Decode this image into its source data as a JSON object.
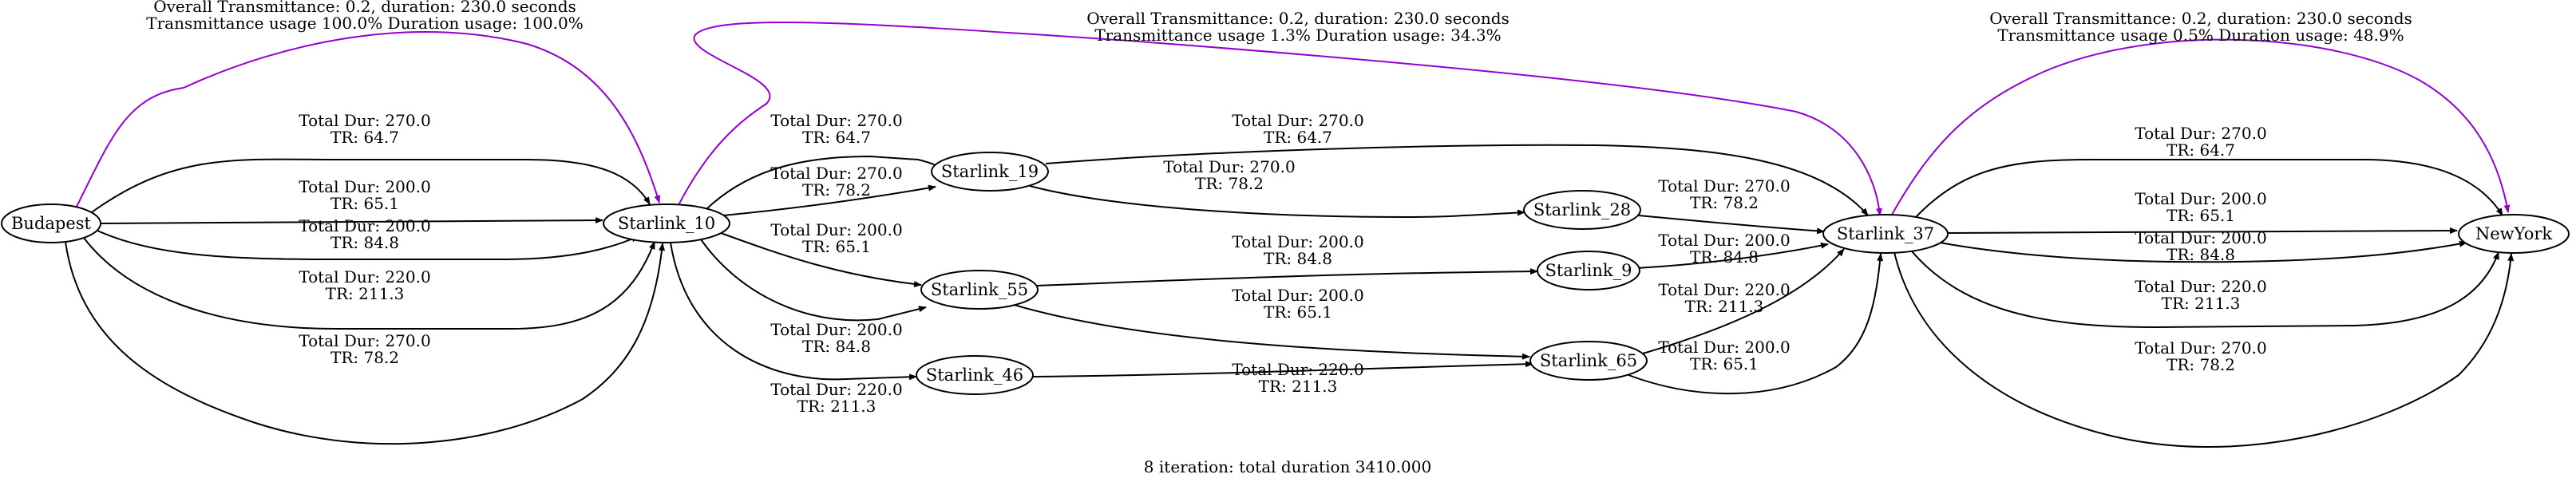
{
  "caption": "8 iteration: total duration 3410.000",
  "colors": {
    "edge": "#000000",
    "highlight": "#9400d3"
  },
  "nodes": [
    {
      "id": "budapest",
      "label": "Budapest"
    },
    {
      "id": "starlink_10",
      "label": "Starlink_10"
    },
    {
      "id": "starlink_19",
      "label": "Starlink_19"
    },
    {
      "id": "starlink_55",
      "label": "Starlink_55"
    },
    {
      "id": "starlink_46",
      "label": "Starlink_46"
    },
    {
      "id": "starlink_28",
      "label": "Starlink_28"
    },
    {
      "id": "starlink_9",
      "label": "Starlink_9"
    },
    {
      "id": "starlink_65",
      "label": "Starlink_65"
    },
    {
      "id": "starlink_37",
      "label": "Starlink_37"
    },
    {
      "id": "newyork",
      "label": "NewYork"
    }
  ],
  "edges": [
    {
      "id": "b10-270-64",
      "from": "budapest",
      "to": "starlink_10",
      "label": [
        "Total Dur: 270.0",
        "TR: 64.7"
      ]
    },
    {
      "id": "b10-200-65",
      "from": "budapest",
      "to": "starlink_10",
      "label": [
        "Total Dur: 200.0",
        "TR: 65.1"
      ]
    },
    {
      "id": "b10-200-84",
      "from": "budapest",
      "to": "starlink_10",
      "label": [
        "Total Dur: 200.0",
        "TR: 84.8"
      ]
    },
    {
      "id": "b10-220-211",
      "from": "budapest",
      "to": "starlink_10",
      "label": [
        "Total Dur: 220.0",
        "TR: 211.3"
      ]
    },
    {
      "id": "b10-270-78",
      "from": "budapest",
      "to": "starlink_10",
      "label": [
        "Total Dur: 270.0",
        "TR: 78.2"
      ]
    },
    {
      "id": "b10-overall",
      "from": "budapest",
      "to": "starlink_10",
      "highlight": true,
      "label": [
        "Overall Transmittance: 0.2, duration: 230.0 seconds",
        "Transmittance usage 100.0% Duration usage: 100.0%"
      ]
    },
    {
      "id": "s10-19-64",
      "from": "starlink_10",
      "to": "starlink_19",
      "label": [
        "Total Dur: 270.0",
        "TR: 64.7"
      ]
    },
    {
      "id": "s10-19-78",
      "from": "starlink_10",
      "to": "starlink_19",
      "label": [
        "Total Dur: 270.0",
        "TR: 78.2"
      ]
    },
    {
      "id": "s10-55-65",
      "from": "starlink_10",
      "to": "starlink_55",
      "label": [
        "Total Dur: 200.0",
        "TR: 65.1"
      ]
    },
    {
      "id": "s10-55-84",
      "from": "starlink_10",
      "to": "starlink_55",
      "label": [
        "Total Dur: 200.0",
        "TR: 84.8"
      ]
    },
    {
      "id": "s10-46-211",
      "from": "starlink_10",
      "to": "starlink_46",
      "label": [
        "Total Dur: 220.0",
        "TR: 211.3"
      ]
    },
    {
      "id": "s10-37-overall",
      "from": "starlink_10",
      "to": "starlink_37",
      "highlight": true,
      "label": [
        "Overall Transmittance: 0.2, duration: 230.0 seconds",
        "Transmittance usage 1.3% Duration usage: 34.3%"
      ]
    },
    {
      "id": "s19-37-64",
      "from": "starlink_19",
      "to": "starlink_37",
      "label": [
        "Total Dur: 270.0",
        "TR: 64.7"
      ]
    },
    {
      "id": "s19-28-78",
      "from": "starlink_19",
      "to": "starlink_28",
      "label": [
        "Total Dur: 270.0",
        "TR: 78.2"
      ]
    },
    {
      "id": "s55-9-84",
      "from": "starlink_55",
      "to": "starlink_9",
      "label": [
        "Total Dur: 200.0",
        "TR: 84.8"
      ]
    },
    {
      "id": "s55-65-65",
      "from": "starlink_55",
      "to": "starlink_65",
      "label": [
        "Total Dur: 200.0",
        "TR: 65.1"
      ]
    },
    {
      "id": "s46-65-211",
      "from": "starlink_46",
      "to": "starlink_65",
      "label": [
        "Total Dur: 220.0",
        "TR: 211.3"
      ]
    },
    {
      "id": "s28-37-78",
      "from": "starlink_28",
      "to": "starlink_37",
      "label": [
        "Total Dur: 270.0",
        "TR: 78.2"
      ]
    },
    {
      "id": "s9-37-84",
      "from": "starlink_9",
      "to": "starlink_37",
      "label": [
        "Total Dur: 200.0",
        "TR: 84.8"
      ]
    },
    {
      "id": "s65-37-211",
      "from": "starlink_65",
      "to": "starlink_37",
      "label": [
        "Total Dur: 220.0",
        "TR: 211.3"
      ]
    },
    {
      "id": "s65-37-65",
      "from": "starlink_65",
      "to": "starlink_37",
      "label": [
        "Total Dur: 200.0",
        "TR: 65.1"
      ]
    },
    {
      "id": "s37-ny-64",
      "from": "starlink_37",
      "to": "newyork",
      "label": [
        "Total Dur: 270.0",
        "TR: 64.7"
      ]
    },
    {
      "id": "s37-ny-65",
      "from": "starlink_37",
      "to": "newyork",
      "label": [
        "Total Dur: 200.0",
        "TR: 65.1"
      ]
    },
    {
      "id": "s37-ny-84",
      "from": "starlink_37",
      "to": "newyork",
      "label": [
        "Total Dur: 200.0",
        "TR: 84.8"
      ]
    },
    {
      "id": "s37-ny-211",
      "from": "starlink_37",
      "to": "newyork",
      "label": [
        "Total Dur: 220.0",
        "TR: 211.3"
      ]
    },
    {
      "id": "s37-ny-78",
      "from": "starlink_37",
      "to": "newyork",
      "label": [
        "Total Dur: 270.0",
        "TR: 78.2"
      ]
    },
    {
      "id": "s37-ny-overall",
      "from": "starlink_37",
      "to": "newyork",
      "highlight": true,
      "label": [
        "Overall Transmittance: 0.2, duration: 230.0 seconds",
        "Transmittance usage 0.5% Duration usage: 48.9%"
      ]
    }
  ]
}
